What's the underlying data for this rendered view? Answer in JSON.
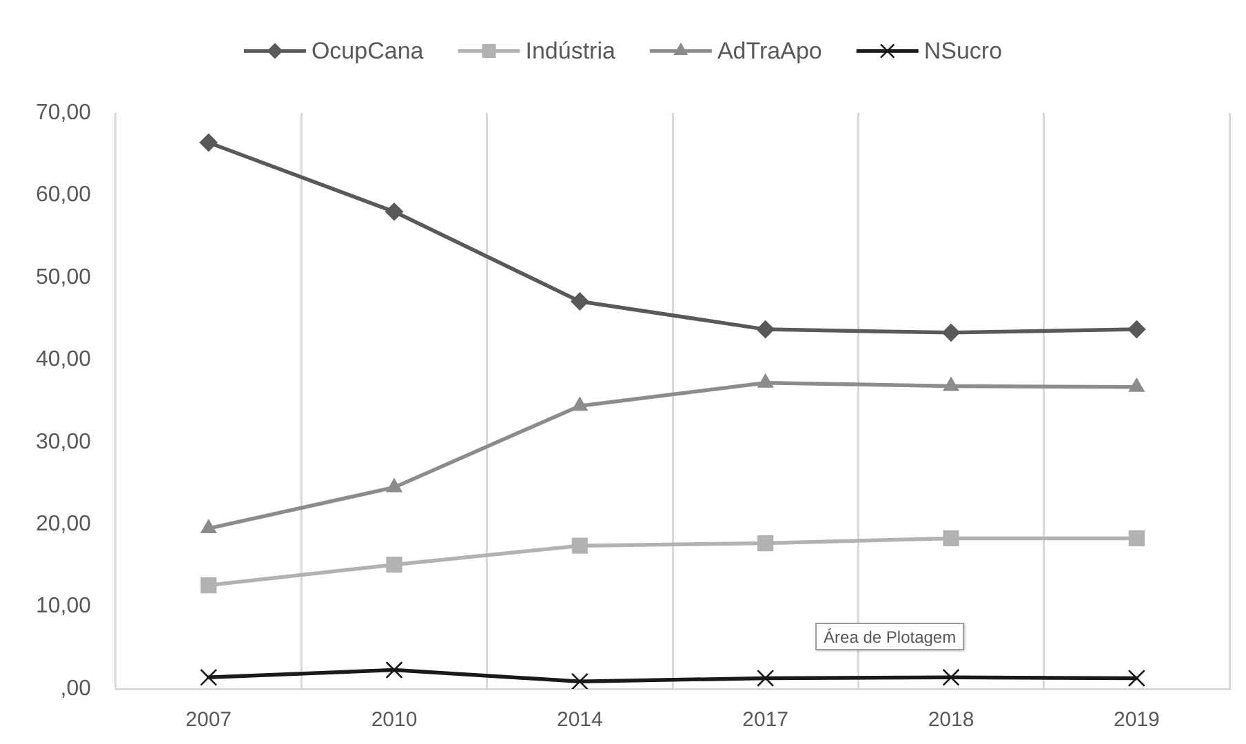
{
  "chart_data": {
    "type": "line",
    "categories": [
      "2007",
      "2010",
      "2014",
      "2017",
      "2018",
      "2019"
    ],
    "series": [
      {
        "name": "OcupCana",
        "color": "#595959",
        "marker": "diamond",
        "values": [
          66.4,
          58.0,
          47.1,
          43.7,
          43.3,
          43.7
        ]
      },
      {
        "name": "Indústria",
        "color": "#b2b2b2",
        "marker": "square",
        "values": [
          12.6,
          15.1,
          17.4,
          17.7,
          18.3,
          18.3
        ]
      },
      {
        "name": "AdTraApo",
        "color": "#8c8c8c",
        "marker": "triangle",
        "values": [
          19.5,
          24.5,
          34.4,
          37.2,
          36.8,
          36.7
        ]
      },
      {
        "name": "NSucro",
        "color": "#1a1a1a",
        "marker": "cross",
        "values": [
          1.4,
          2.3,
          0.9,
          1.3,
          1.4,
          1.3
        ]
      }
    ],
    "ylim": [
      0,
      70
    ],
    "yticks": [
      {
        "value": 0,
        "label": ",00"
      },
      {
        "value": 10,
        "label": "10,00"
      },
      {
        "value": 20,
        "label": "20,00"
      },
      {
        "value": 30,
        "label": "30,00"
      },
      {
        "value": 40,
        "label": "40,00"
      },
      {
        "value": 50,
        "label": "50,00"
      },
      {
        "value": 60,
        "label": "60,00"
      },
      {
        "value": 70,
        "label": "70,00"
      }
    ],
    "grid": "x",
    "legend": "top",
    "annotations": [
      "Área de Plotagem"
    ]
  }
}
